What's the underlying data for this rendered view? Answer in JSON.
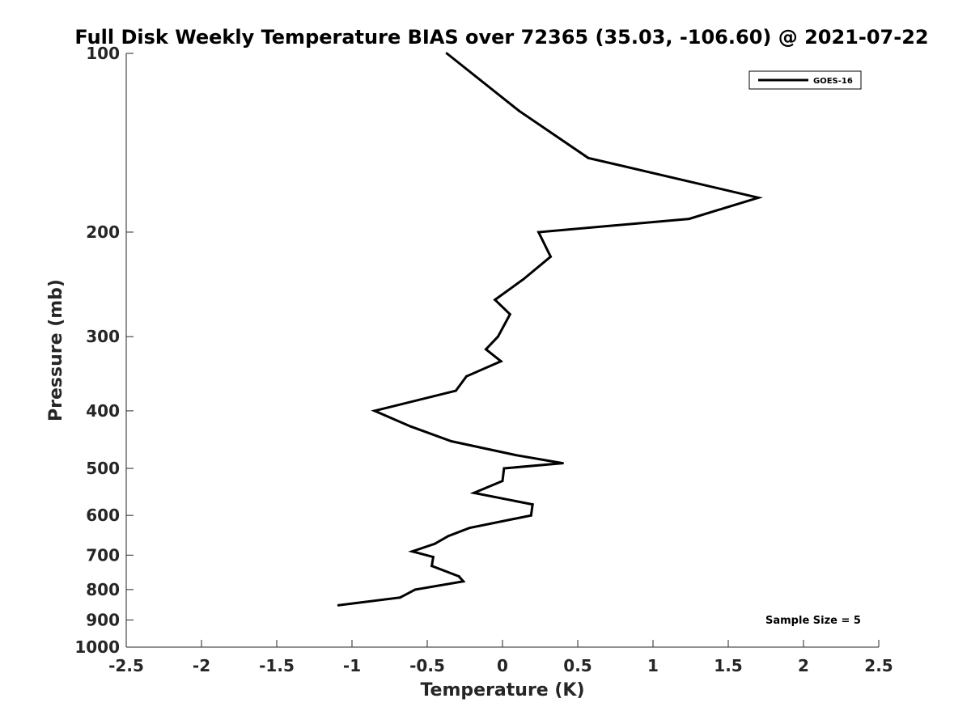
{
  "chart_data": {
    "type": "line",
    "title": "Full Disk Weekly Temperature BIAS over 72365 (35.03, -106.60) @ 2021-07-22",
    "xlabel": "Temperature (K)",
    "ylabel": "Pressure (mb)",
    "xlim": [
      -2.5,
      2.5
    ],
    "ylim": [
      100,
      1000
    ],
    "y_scale": "log",
    "y_reversed": true,
    "x_ticks": [
      -2.5,
      -2,
      -1.5,
      -1,
      -0.5,
      0,
      0.5,
      1,
      1.5,
      2,
      2.5
    ],
    "x_tick_labels": [
      "-2.5",
      "-2",
      "-1.5",
      "-1",
      "-0.5",
      "0",
      "0.5",
      "1",
      "1.5",
      "2",
      "2.5"
    ],
    "y_ticks": [
      100,
      200,
      300,
      400,
      500,
      600,
      700,
      800,
      900,
      1000
    ],
    "y_tick_labels": [
      "100",
      "200",
      "300",
      "400",
      "500",
      "600",
      "700",
      "800",
      "900",
      "1000"
    ],
    "grid": false,
    "legend": {
      "position": "top-right",
      "entries": [
        "GOES-16"
      ]
    },
    "annotations": [
      "Sample Size = 5"
    ],
    "colors": {
      "series": "#000000",
      "axes": "#262626"
    },
    "series": [
      {
        "name": "GOES-16",
        "points": [
          [
            -0.37,
            100
          ],
          [
            0.11,
            125
          ],
          [
            0.57,
            150
          ],
          [
            1.7,
            175
          ],
          [
            1.24,
            190
          ],
          [
            0.24,
            200
          ],
          [
            0.32,
            220
          ],
          [
            0.14,
            240
          ],
          [
            -0.05,
            260
          ],
          [
            0.05,
            275
          ],
          [
            -0.03,
            300
          ],
          [
            -0.11,
            315
          ],
          [
            -0.01,
            330
          ],
          [
            -0.24,
            350
          ],
          [
            -0.31,
            370
          ],
          [
            -0.85,
            400
          ],
          [
            -0.61,
            425
          ],
          [
            -0.34,
            450
          ],
          [
            0.09,
            475
          ],
          [
            0.4,
            490
          ],
          [
            0.01,
            500
          ],
          [
            0,
            525
          ],
          [
            -0.19,
            550
          ],
          [
            0.2,
            575
          ],
          [
            0.19,
            600
          ],
          [
            -0.22,
            630
          ],
          [
            -0.36,
            650
          ],
          [
            -0.45,
            670
          ],
          [
            -0.6,
            690
          ],
          [
            -0.46,
            705
          ],
          [
            -0.47,
            730
          ],
          [
            -0.29,
            760
          ],
          [
            -0.26,
            775
          ],
          [
            -0.58,
            800
          ],
          [
            -0.68,
            825
          ],
          [
            -1.09,
            850
          ]
        ]
      }
    ]
  }
}
